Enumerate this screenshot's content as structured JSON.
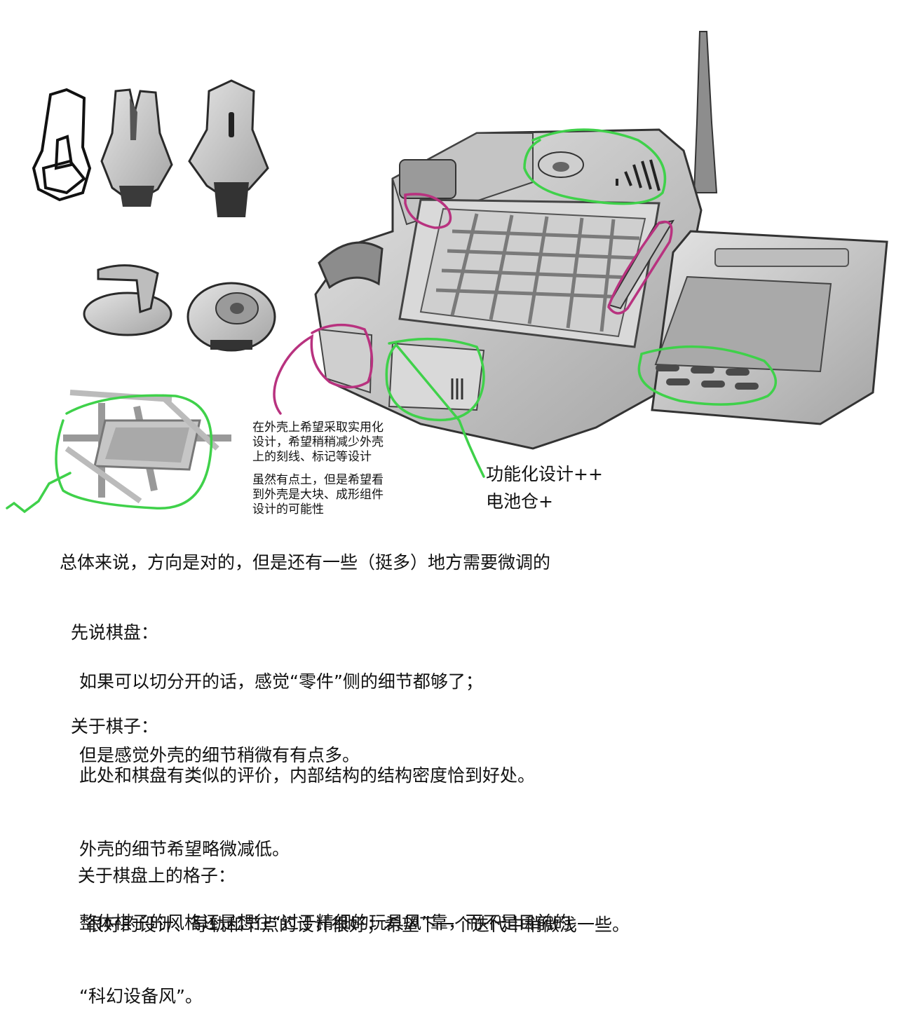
{
  "annotations": {
    "shell_note": "在外壳上希望采取实用化\n设计，希望稍稍减少外壳\n上的刻线、标记等设计",
    "block_note": "虽然有点土，但是希望看\n到外壳是大块、成形组件\n设计的可能性",
    "function_note": "功能化设计++",
    "battery_note": "电池仓+"
  },
  "feedback": {
    "summary": "总体来说，方向是对的，但是还有一些（挺多）地方需要微调的",
    "board": {
      "heading": "先说棋盘：",
      "lines": [
        "如果可以切分开的话，感觉“零件”侧的细节都够了；",
        "但是感觉外壳的细节稍微有有点多。"
      ]
    },
    "pieces": {
      "heading": "关于棋子：",
      "lines": [
        "此处和棋盘有类似的评价，内部结构的结构密度恰到好处。",
        "外壳的细节希望略微减低。",
        "整体棋子的风格还是想往“过于精细的玩具风”靠，而不是目前的",
        "“科幻设备风”。"
      ]
    },
    "grid": {
      "heading": "关于棋盘上的格子：",
      "lines": [
        "很好的设计、导轨和节点的设计很好；希望下一个迭代中稍微浅一些。"
      ]
    }
  },
  "colors": {
    "green_mark": "#3fd14a",
    "magenta_mark": "#b8327f",
    "metal_light": "#d2d2d2",
    "metal_mid": "#a8a8a8",
    "metal_dark": "#3a3a3a"
  }
}
